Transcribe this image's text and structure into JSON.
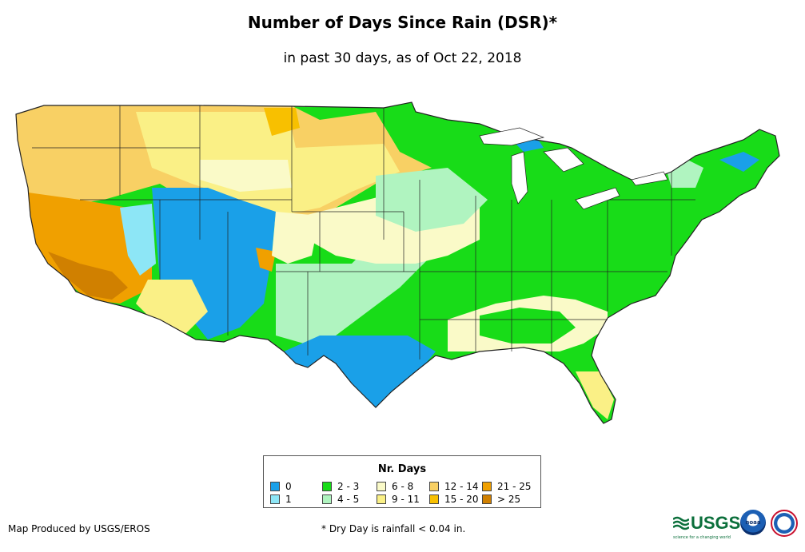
{
  "header": {
    "title": "Number of Days Since Rain (DSR)*",
    "subtitle": "in past 30 days, as of Oct 22, 2018"
  },
  "legend": {
    "title": "Nr. Days",
    "items": [
      {
        "label": "0",
        "color": "#1aa0e8"
      },
      {
        "label": "1",
        "color": "#8de6f6"
      },
      {
        "label": "2 - 3",
        "color": "#18dc18"
      },
      {
        "label": "4 - 5",
        "color": "#b0f4c0"
      },
      {
        "label": "6 - 8",
        "color": "#fafac8"
      },
      {
        "label": "9 - 11",
        "color": "#faf086"
      },
      {
        "label": "12 - 14",
        "color": "#f8d064"
      },
      {
        "label": "15 - 20",
        "color": "#f8c000"
      },
      {
        "label": "21 - 25",
        "color": "#f0a000"
      },
      {
        "label": "> 25",
        "color": "#d08000"
      }
    ]
  },
  "footer": {
    "credit": "Map Produced by USGS/EROS",
    "footnote": "* Dry Day is rainfall < 0.04 in.",
    "usgs_logo_text": "USGS",
    "usgs_tagline": "science for a changing world",
    "noaa_logo": "noaa",
    "nws_logo": "National Weather Service"
  }
}
